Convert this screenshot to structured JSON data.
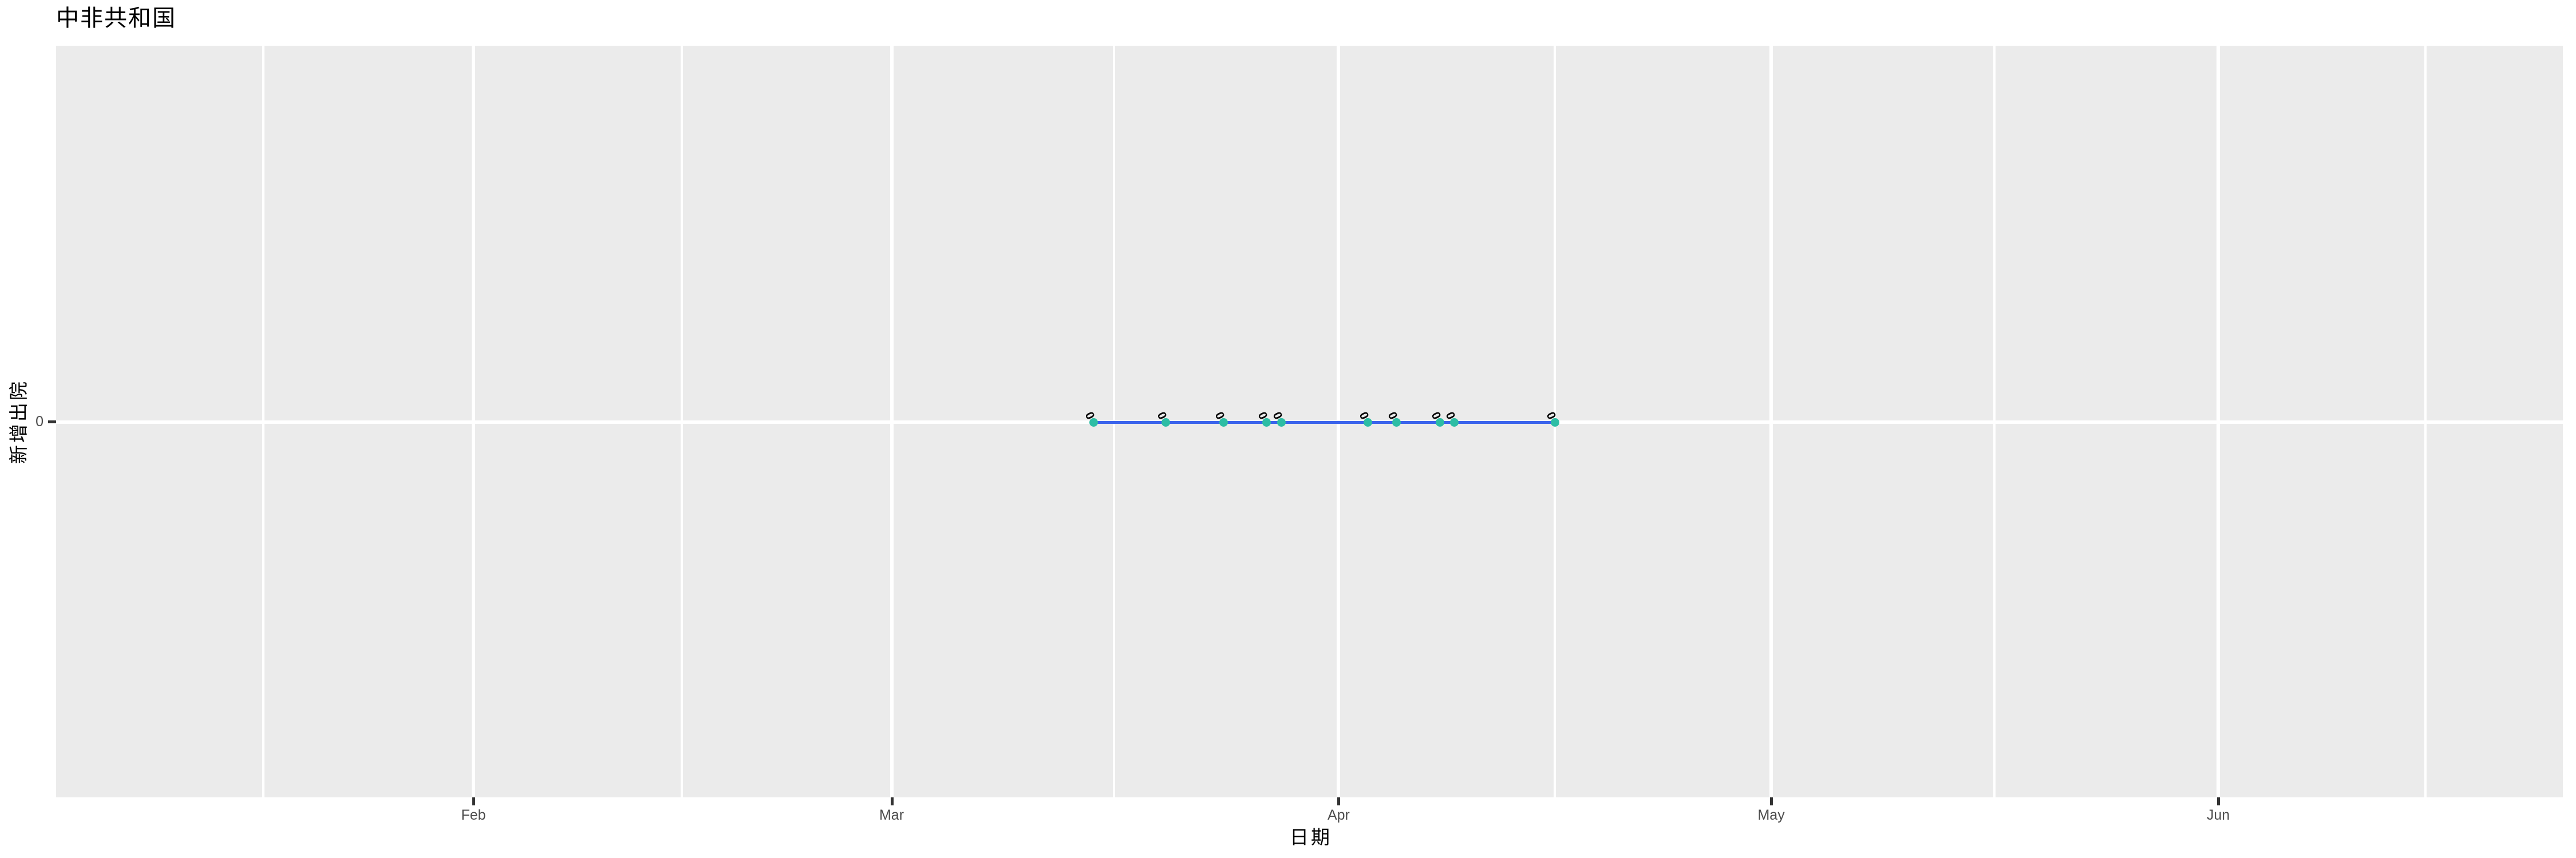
{
  "chart_data": {
    "type": "line",
    "title": "中非共和国",
    "xlabel": "日期",
    "ylabel": "新增出院",
    "x_tick_labels": [
      "Feb",
      "Mar",
      "Apr",
      "May",
      "Jun"
    ],
    "y_tick_labels": [
      "0"
    ],
    "y_ticks": [
      0
    ],
    "grid": true,
    "legend": false,
    "series": [
      {
        "name": "新增出院",
        "x": [
          "Mar 15",
          "Mar 20",
          "Mar 24",
          "Mar 27",
          "Mar 28",
          "Apr 3",
          "Apr 5",
          "Apr 8",
          "Apr 9",
          "Apr 16"
        ],
        "values": [
          0,
          0,
          0,
          0,
          0,
          0,
          0,
          0,
          0,
          0
        ],
        "point_labels": [
          "0",
          "0",
          "0",
          "0",
          "0",
          "0",
          "0",
          "0",
          "0",
          "0"
        ]
      }
    ],
    "colors": {
      "line": "#3B64EC",
      "point": "#2DBDA4",
      "point_label": "#000000",
      "panel_bg": "#EBEBEB",
      "grid": "#FFFFFF",
      "axis_text": "#4D4D4D",
      "axis_tick": "#333333",
      "title": "#000000"
    }
  }
}
